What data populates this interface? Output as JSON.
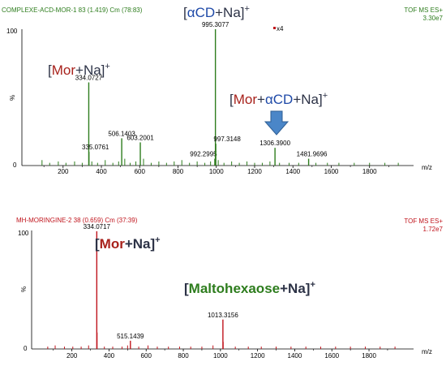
{
  "chart_data": [
    {
      "type": "bar",
      "header_left": "COMPLEXE-ACD-MOR-1 83 (1.419) Cm (78:83)",
      "header_right": "TOF MS ES+",
      "intensity": "3.30e7",
      "y_top_label": "100",
      "y_unit": "%",
      "y_zero_label": "0",
      "xlabel": "m/z",
      "xticks": [
        "200",
        "400",
        "600",
        "800",
        "1000",
        "1200",
        "1400",
        "1600",
        "1800"
      ],
      "xlim": [
        40,
        1990
      ],
      "ylim": [
        0,
        100
      ],
      "zoom_marker": "x4",
      "color": "#2e7d1e",
      "peaks": [
        {
          "mz": 334.0727,
          "rel": 61,
          "label": "334.0727"
        },
        {
          "mz": 335.0761,
          "rel": 10,
          "label": "335.0761"
        },
        {
          "mz": 506.1403,
          "rel": 20,
          "label": "506.1403"
        },
        {
          "mz": 603.2001,
          "rel": 17,
          "label": "603.2001"
        },
        {
          "mz": 992.2995,
          "rel": 5,
          "label": "992.2995"
        },
        {
          "mz": 995.3077,
          "rel": 100,
          "label": "995.3077"
        },
        {
          "mz": 997.3148,
          "rel": 16,
          "label": "997.3148"
        },
        {
          "mz": 1306.39,
          "rel": 13,
          "label": "1306.3900"
        },
        {
          "mz": 1481.9696,
          "rel": 5,
          "label": "1481.9696"
        }
      ],
      "minor_peaks": [
        {
          "mz": 90,
          "rel": 4
        },
        {
          "mz": 130,
          "rel": 2
        },
        {
          "mz": 175,
          "rel": 3
        },
        {
          "mz": 215,
          "rel": 2
        },
        {
          "mz": 260,
          "rel": 3
        },
        {
          "mz": 300,
          "rel": 2
        },
        {
          "mz": 350,
          "rel": 3
        },
        {
          "mz": 380,
          "rel": 2
        },
        {
          "mz": 420,
          "rel": 4
        },
        {
          "mz": 460,
          "rel": 2
        },
        {
          "mz": 490,
          "rel": 3
        },
        {
          "mz": 522,
          "rel": 5
        },
        {
          "mz": 550,
          "rel": 2
        },
        {
          "mz": 580,
          "rel": 3
        },
        {
          "mz": 620,
          "rel": 5
        },
        {
          "mz": 660,
          "rel": 2
        },
        {
          "mz": 700,
          "rel": 3
        },
        {
          "mz": 740,
          "rel": 2
        },
        {
          "mz": 780,
          "rel": 3
        },
        {
          "mz": 820,
          "rel": 4
        },
        {
          "mz": 860,
          "rel": 2
        },
        {
          "mz": 900,
          "rel": 3
        },
        {
          "mz": 940,
          "rel": 2
        },
        {
          "mz": 970,
          "rel": 3
        },
        {
          "mz": 1010,
          "rel": 4
        },
        {
          "mz": 1040,
          "rel": 2
        },
        {
          "mz": 1080,
          "rel": 3
        },
        {
          "mz": 1120,
          "rel": 2
        },
        {
          "mz": 1160,
          "rel": 3
        },
        {
          "mz": 1200,
          "rel": 2
        },
        {
          "mz": 1240,
          "rel": 2
        },
        {
          "mz": 1280,
          "rel": 3
        },
        {
          "mz": 1330,
          "rel": 2
        },
        {
          "mz": 1380,
          "rel": 2
        },
        {
          "mz": 1430,
          "rel": 2
        },
        {
          "mz": 1520,
          "rel": 2
        },
        {
          "mz": 1580,
          "rel": 2
        },
        {
          "mz": 1640,
          "rel": 2
        },
        {
          "mz": 1720,
          "rel": 2
        },
        {
          "mz": 1800,
          "rel": 2
        },
        {
          "mz": 1880,
          "rel": 2
        },
        {
          "mz": 1950,
          "rel": 2
        }
      ]
    },
    {
      "type": "bar",
      "header_left": "MH-MORINGINE-2 38 (0.659) Cm (37:39)",
      "header_right": "TOF MS ES+",
      "intensity": "1.72e7",
      "y_top_label": "100",
      "y_unit": "%",
      "y_zero_label": "0",
      "xlabel": "m/z",
      "xticks": [
        "200",
        "400",
        "600",
        "800",
        "1000",
        "1200",
        "1400",
        "1600",
        "1800"
      ],
      "xlim": [
        40,
        1990
      ],
      "ylim": [
        0,
        100
      ],
      "color": "#c0141c",
      "peaks": [
        {
          "mz": 334.0717,
          "rel": 100,
          "label": "334.0717"
        },
        {
          "mz": 515.1439,
          "rel": 7,
          "label": "515.1439"
        },
        {
          "mz": 1013.3156,
          "rel": 25,
          "label": "1013.3156"
        }
      ],
      "minor_peaks": [
        {
          "mz": 70,
          "rel": 2
        },
        {
          "mz": 110,
          "rel": 3
        },
        {
          "mz": 160,
          "rel": 2
        },
        {
          "mz": 205,
          "rel": 2
        },
        {
          "mz": 250,
          "rel": 2
        },
        {
          "mz": 290,
          "rel": 3
        },
        {
          "mz": 336,
          "rel": 14
        },
        {
          "mz": 375,
          "rel": 2
        },
        {
          "mz": 420,
          "rel": 2
        },
        {
          "mz": 470,
          "rel": 2
        },
        {
          "mz": 500,
          "rel": 3
        },
        {
          "mz": 560,
          "rel": 2
        },
        {
          "mz": 610,
          "rel": 3
        },
        {
          "mz": 660,
          "rel": 2
        },
        {
          "mz": 720,
          "rel": 2
        },
        {
          "mz": 780,
          "rel": 2
        },
        {
          "mz": 840,
          "rel": 2
        },
        {
          "mz": 900,
          "rel": 2
        },
        {
          "mz": 960,
          "rel": 3
        },
        {
          "mz": 1015,
          "rel": 6
        },
        {
          "mz": 1080,
          "rel": 2
        },
        {
          "mz": 1150,
          "rel": 2
        },
        {
          "mz": 1220,
          "rel": 2
        },
        {
          "mz": 1300,
          "rel": 2
        },
        {
          "mz": 1380,
          "rel": 2
        },
        {
          "mz": 1460,
          "rel": 2
        },
        {
          "mz": 1540,
          "rel": 2
        },
        {
          "mz": 1620,
          "rel": 2
        },
        {
          "mz": 1700,
          "rel": 2
        },
        {
          "mz": 1780,
          "rel": 2
        },
        {
          "mz": 1860,
          "rel": 2
        },
        {
          "mz": 1940,
          "rel": 2
        }
      ]
    }
  ],
  "annotations": {
    "acd_na": {
      "open": "[",
      "prefix": "α",
      "name": "CD",
      "rest": "+Na]",
      "sup": "+"
    },
    "mor_na_top": {
      "open": "[",
      "name": "Mor",
      "rest": "+Na]",
      "sup": "+"
    },
    "mor_acd_na": {
      "open": "[",
      "name": "Mor",
      "plus": "+",
      "prefix": "α",
      "name2": "CD",
      "rest": "+Na]",
      "sup": "+"
    },
    "mor_na_bottom": {
      "open": "[",
      "name": "Mor",
      "rest": "+Na]",
      "sup": "+"
    },
    "maltohexaose_na": {
      "open": "[",
      "name": "Maltohexaose",
      "rest": "+Na]",
      "sup": "+"
    }
  },
  "colors": {
    "mor": "#a8221c",
    "acd": "#1f4aa8",
    "text_dark": "#2c3246",
    "maltohexaose": "#2e7d1e",
    "arrow": "#4a86c8",
    "zoom_marker": "#c0141c"
  }
}
